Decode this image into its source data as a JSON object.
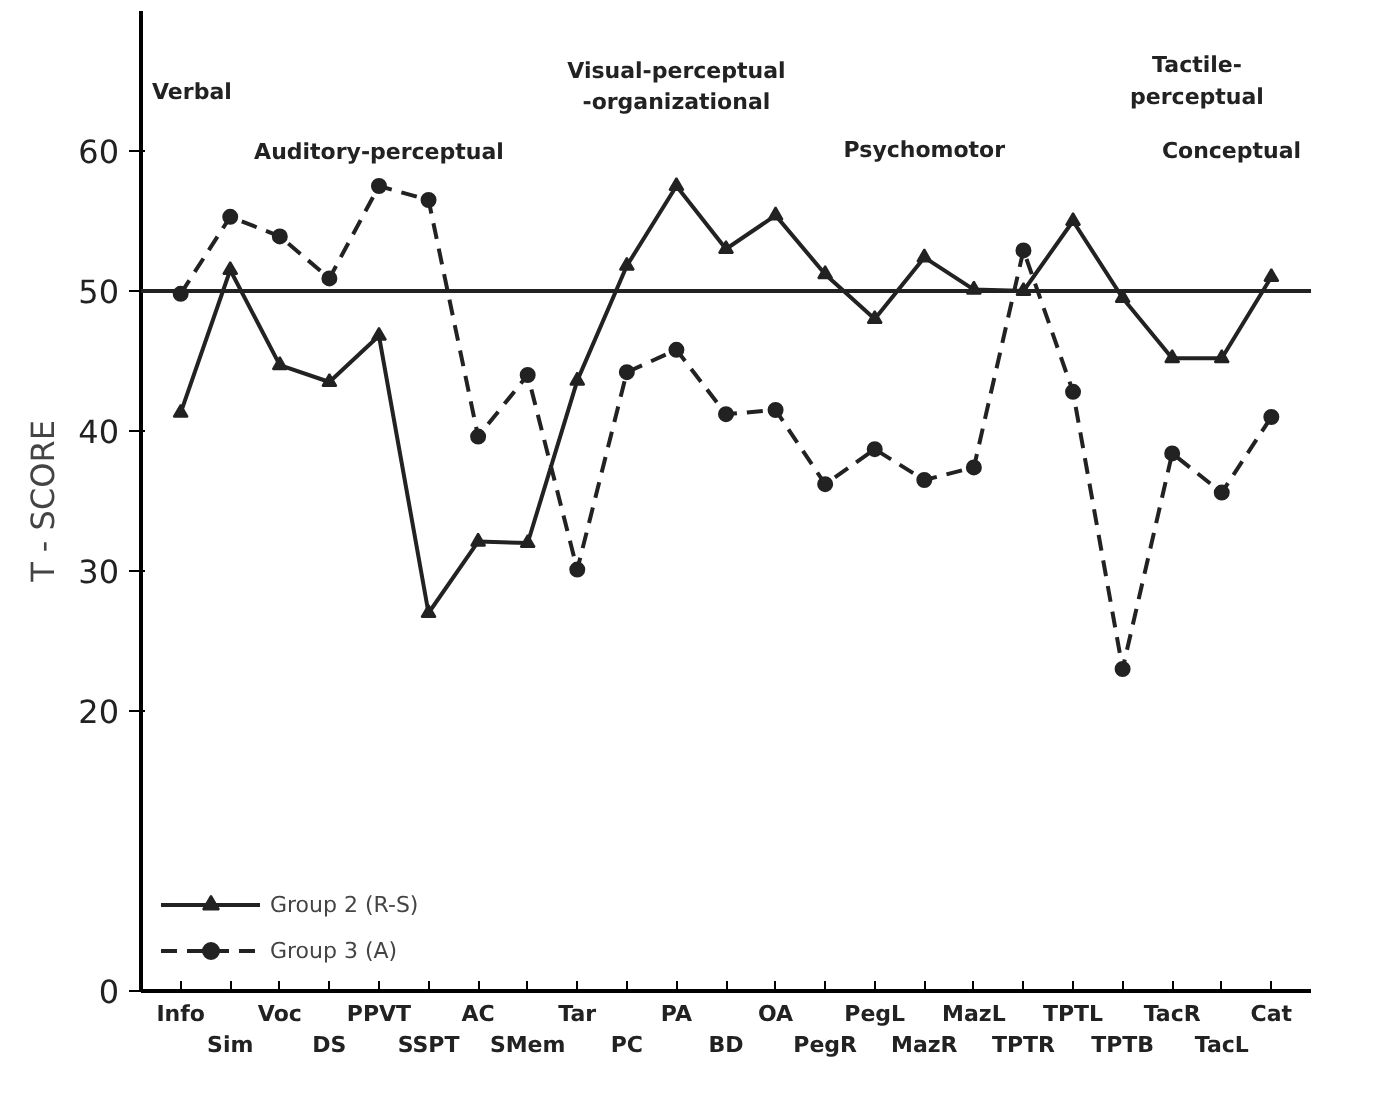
{
  "chart_data": {
    "type": "line",
    "ylabel": "T - SCORE",
    "categories": [
      "Info",
      "Sim",
      "Voc",
      "DS",
      "PPVT",
      "SSPT",
      "AC",
      "SMem",
      "Tar",
      "PC",
      "PA",
      "BD",
      "OA",
      "PegR",
      "PegL",
      "MazR",
      "MazL",
      "TPTR",
      "TPTL",
      "TPTB",
      "TacR",
      "TacL",
      "Cat"
    ],
    "series": [
      {
        "name": "Group 2 (R-S)",
        "color": "#222222",
        "marker": "triangle",
        "line_style": "solid",
        "values": [
          41.3,
          51.5,
          44.7,
          43.5,
          46.8,
          27,
          32.1,
          32,
          43.6,
          51.8,
          57.5,
          53,
          55.4,
          51.2,
          48,
          52.4,
          50.1,
          50,
          55,
          49.5,
          45.2,
          45.2,
          51
        ]
      },
      {
        "name": "Group 3 (A)",
        "color": "#222222",
        "marker": "circle",
        "line_style": "dashed",
        "values": [
          49.8,
          55.3,
          53.9,
          50.9,
          57.5,
          56.5,
          39.6,
          44,
          30.1,
          44.2,
          45.8,
          41.2,
          41.5,
          36.2,
          38.7,
          36.5,
          37.4,
          52.9,
          42.8,
          23,
          38.4,
          35.6,
          41
        ]
      }
    ],
    "ylim": [
      0,
      70
    ],
    "yticks": [
      0,
      20,
      30,
      40,
      50,
      60
    ],
    "ref_lines": [
      {
        "axis": "y",
        "value": 50,
        "label": null
      }
    ],
    "annotations": [
      "Verbal",
      "Auditory-perceptual",
      "Visual-perceptual\n-organizational",
      "Psychomotor",
      "Tactile-\nperceptual",
      "Conceptual"
    ],
    "legend": "bottom left",
    "grid": false
  }
}
